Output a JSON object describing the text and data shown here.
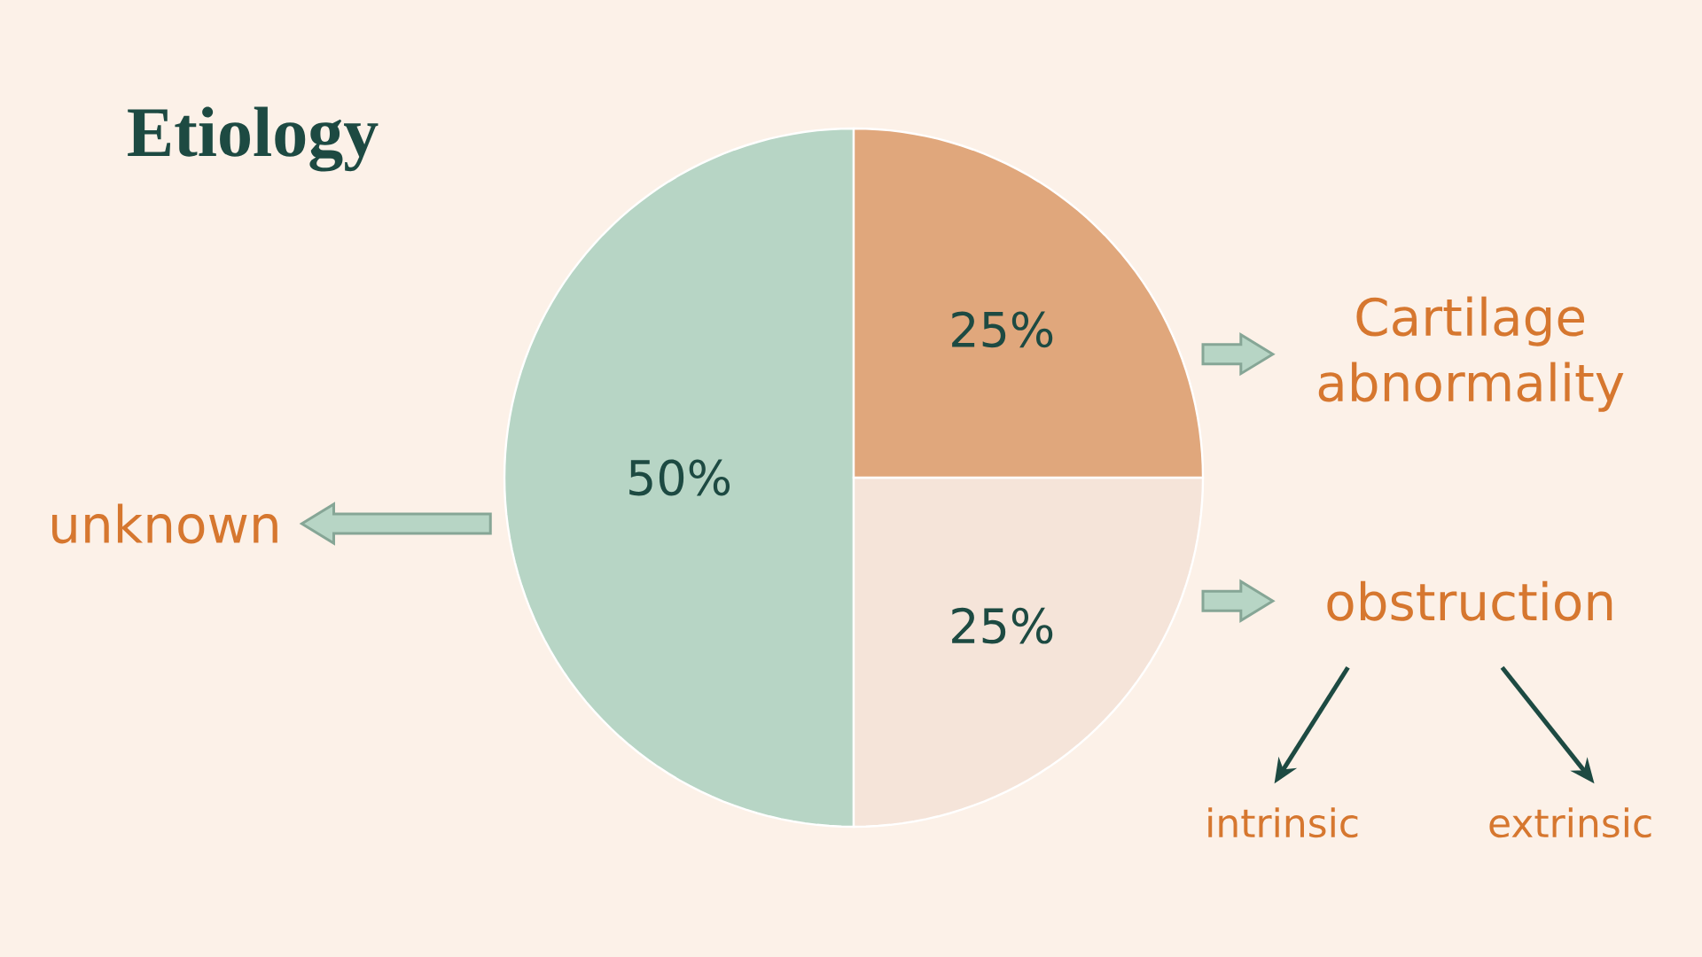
{
  "chart_data": {
    "type": "pie",
    "title": "Etiology",
    "categories": [
      "unknown",
      "obstruction",
      "Cartilage abnormality"
    ],
    "values": [
      50,
      25,
      25
    ],
    "colors": [
      "#b7d5c5",
      "#f5e4d9",
      "#e0a77c"
    ],
    "value_labels": [
      "50%",
      "25%",
      "25%"
    ],
    "annotations": [
      "intrinsic",
      "extrinsic"
    ]
  }
}
